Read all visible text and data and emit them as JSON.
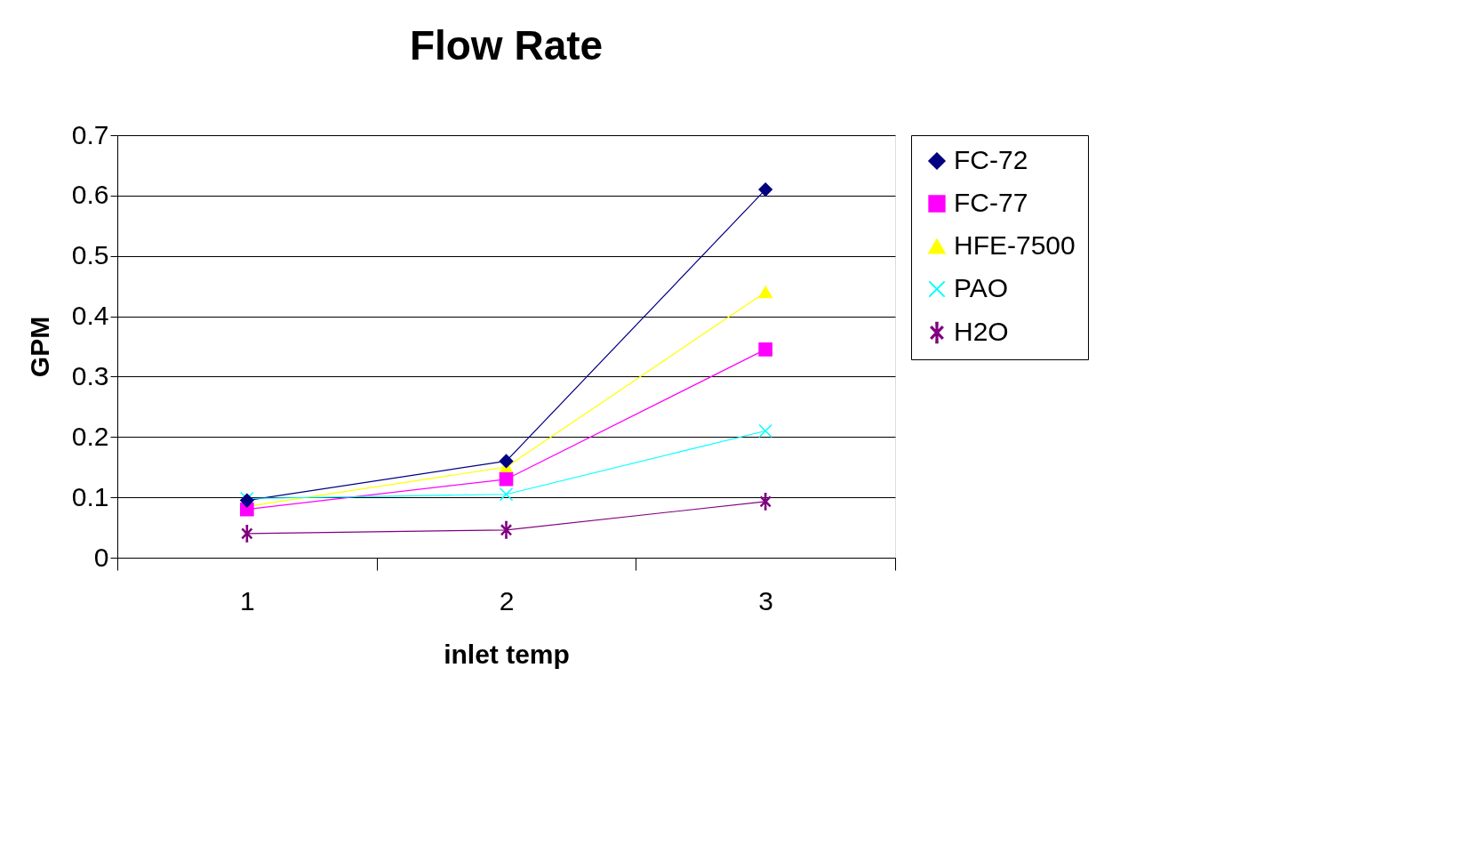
{
  "chart_data": {
    "type": "line",
    "title": "Flow Rate",
    "xlabel": "inlet temp",
    "ylabel": "GPM",
    "categories": [
      "1",
      "2",
      "3"
    ],
    "series": [
      {
        "name": "FC-72",
        "color": "#000080",
        "marker": "diamond",
        "values": [
          0.095,
          0.16,
          0.61
        ]
      },
      {
        "name": "FC-77",
        "color": "#ff00ff",
        "marker": "square",
        "values": [
          0.08,
          0.13,
          0.345
        ]
      },
      {
        "name": "HFE-7500",
        "color": "#ffff00",
        "marker": "triangle",
        "values": [
          0.085,
          0.15,
          0.44
        ]
      },
      {
        "name": "PAO",
        "color": "#00ffff",
        "marker": "cross",
        "values": [
          0.098,
          0.105,
          0.21
        ]
      },
      {
        "name": "H2O",
        "color": "#800080",
        "marker": "star",
        "values": [
          0.04,
          0.046,
          0.093
        ]
      }
    ],
    "ylim": [
      0,
      0.7
    ],
    "yticks": [
      0,
      0.1,
      0.2,
      0.3,
      0.4,
      0.5,
      0.6,
      0.7
    ],
    "grid": "y",
    "legend": "right",
    "line_style": "solid"
  }
}
